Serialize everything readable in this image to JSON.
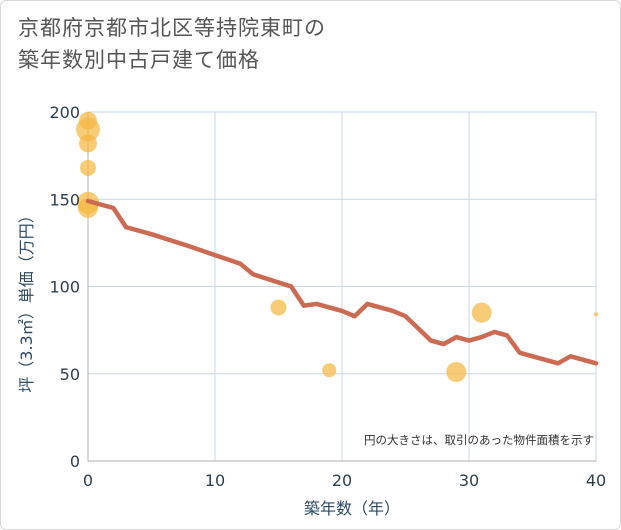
{
  "title_lines": [
    "京都府京都市北区等持院東町の",
    "築年数別中古戸建て価格"
  ],
  "chart_data": {
    "type": "scatter",
    "title": "京都府京都市北区等持院東町の築年数別中古戸建て価格",
    "xlabel": "築年数（年）",
    "ylabel": "坪（3.3㎡）単価（万円）",
    "xlim": [
      0,
      40
    ],
    "ylim": [
      0,
      200
    ],
    "xticks": [
      0,
      10,
      20,
      30,
      40
    ],
    "yticks": [
      0,
      50,
      100,
      150,
      200
    ],
    "grid": true,
    "note": "円の大きさは、取引のあった物件面積を示す",
    "colors": {
      "points": "#f5b942",
      "trend": "#cc6a52",
      "grid": "#c8d7e6"
    },
    "points": [
      {
        "x": 0,
        "y": 195,
        "size": 9
      },
      {
        "x": 0,
        "y": 190,
        "size": 12
      },
      {
        "x": 0,
        "y": 182,
        "size": 9
      },
      {
        "x": 0,
        "y": 168,
        "size": 8
      },
      {
        "x": 0,
        "y": 148,
        "size": 11
      },
      {
        "x": 0,
        "y": 145,
        "size": 10
      },
      {
        "x": 15,
        "y": 88,
        "size": 8
      },
      {
        "x": 19,
        "y": 52,
        "size": 7
      },
      {
        "x": 29,
        "y": 51,
        "size": 10
      },
      {
        "x": 31,
        "y": 85,
        "size": 10
      },
      {
        "x": 40,
        "y": 84,
        "size": 2
      }
    ],
    "trend": {
      "x": [
        0,
        2,
        3,
        5,
        8,
        10,
        12,
        13,
        16,
        17,
        18,
        19,
        20,
        21,
        22,
        23,
        24,
        25,
        26,
        27,
        28,
        29,
        30,
        31,
        32,
        33,
        34,
        35,
        36,
        37,
        38,
        39,
        40
      ],
      "y": [
        149,
        145,
        134,
        130,
        123,
        118,
        113,
        107,
        100,
        89,
        90,
        88,
        86,
        83,
        90,
        88,
        86,
        83,
        76,
        69,
        67,
        71,
        69,
        71,
        74,
        72,
        62,
        60,
        58,
        56,
        60,
        58,
        56
      ]
    }
  }
}
